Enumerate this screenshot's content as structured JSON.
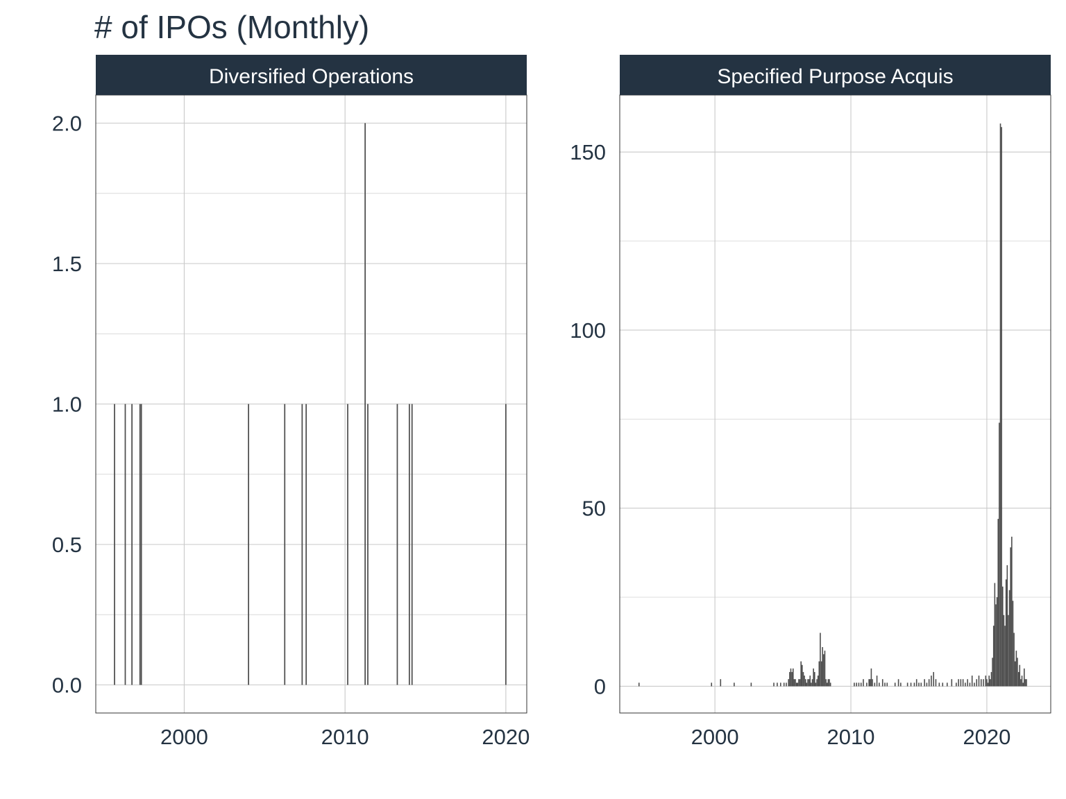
{
  "chart_data": {
    "type": "bar",
    "title": "# of IPOs (Monthly)",
    "xlabel": "",
    "ylabel": "",
    "bar_color": "#4d4d4d",
    "strip_color": "#243342",
    "text_color": "#243342",
    "grid": true,
    "legend": "none",
    "panels": [
      {
        "name": "Diversified Operations",
        "xlim": [
          1994.5,
          2021.3
        ],
        "ylim": [
          -0.1,
          2.1
        ],
        "x_ticks": [
          2000,
          2010,
          2020
        ],
        "x_tick_labels": [
          "2000",
          "2010",
          "2020"
        ],
        "y_ticks": [
          0,
          0.5,
          1,
          1.5,
          2
        ],
        "y_tick_labels": [
          "0.0",
          "0.5",
          "1.0",
          "1.5",
          "2.0"
        ],
        "y_minor": [
          0.25,
          0.75,
          1.25,
          1.75
        ],
        "data": [
          [
            "1995-09",
            1
          ],
          [
            "1996-05",
            1
          ],
          [
            "1996-10",
            1
          ],
          [
            "1997-04",
            1
          ],
          [
            "1997-05",
            1
          ],
          [
            "2004-01",
            1
          ],
          [
            "2006-04",
            1
          ],
          [
            "2007-05",
            1
          ],
          [
            "2007-08",
            1
          ],
          [
            "2010-03",
            1
          ],
          [
            "2011-04",
            2
          ],
          [
            "2011-06",
            1
          ],
          [
            "2013-04",
            1
          ],
          [
            "2014-01",
            1
          ],
          [
            "2014-03",
            1
          ],
          [
            "2020-01",
            1
          ]
        ]
      },
      {
        "name": "Specified Purpose Acquis",
        "xlim": [
          1993.0,
          2024.7
        ],
        "ylim": [
          -7.5,
          166
        ],
        "x_ticks": [
          2000,
          2010,
          2020
        ],
        "x_tick_labels": [
          "2000",
          "2010",
          "2020"
        ],
        "y_ticks": [
          0,
          50,
          100,
          150
        ],
        "y_tick_labels": [
          "0",
          "50",
          "100",
          "150"
        ],
        "y_minor": [
          25,
          75,
          125
        ],
        "data": [
          [
            "1994-06",
            1
          ],
          [
            "1999-10",
            1
          ],
          [
            "2000-06",
            2
          ],
          [
            "2001-06",
            1
          ],
          [
            "2002-09",
            1
          ],
          [
            "2004-05",
            1
          ],
          [
            "2004-08",
            1
          ],
          [
            "2004-11",
            1
          ],
          [
            "2005-02",
            1
          ],
          [
            "2005-04",
            1
          ],
          [
            "2005-06",
            2
          ],
          [
            "2005-07",
            4
          ],
          [
            "2005-08",
            5
          ],
          [
            "2005-09",
            4
          ],
          [
            "2005-10",
            5
          ],
          [
            "2005-11",
            2
          ],
          [
            "2005-12",
            2
          ],
          [
            "2006-01",
            1
          ],
          [
            "2006-02",
            1
          ],
          [
            "2006-03",
            2
          ],
          [
            "2006-04",
            2
          ],
          [
            "2006-05",
            7
          ],
          [
            "2006-06",
            6
          ],
          [
            "2006-07",
            4
          ],
          [
            "2006-08",
            3
          ],
          [
            "2006-09",
            2
          ],
          [
            "2006-10",
            1
          ],
          [
            "2006-11",
            2
          ],
          [
            "2006-12",
            2
          ],
          [
            "2007-01",
            3
          ],
          [
            "2007-02",
            1
          ],
          [
            "2007-03",
            2
          ],
          [
            "2007-04",
            5
          ],
          [
            "2007-05",
            4
          ],
          [
            "2007-06",
            1
          ],
          [
            "2007-07",
            2
          ],
          [
            "2007-08",
            3
          ],
          [
            "2007-09",
            7
          ],
          [
            "2007-10",
            15
          ],
          [
            "2007-11",
            7
          ],
          [
            "2007-12",
            11
          ],
          [
            "2008-01",
            9
          ],
          [
            "2008-02",
            10
          ],
          [
            "2008-03",
            2
          ],
          [
            "2008-04",
            1
          ],
          [
            "2008-05",
            2
          ],
          [
            "2008-06",
            2
          ],
          [
            "2008-07",
            1
          ],
          [
            "2010-04",
            1
          ],
          [
            "2010-06",
            1
          ],
          [
            "2010-08",
            1
          ],
          [
            "2010-10",
            1
          ],
          [
            "2010-12",
            2
          ],
          [
            "2011-03",
            1
          ],
          [
            "2011-05",
            2
          ],
          [
            "2011-06",
            2
          ],
          [
            "2011-07",
            5
          ],
          [
            "2011-08",
            2
          ],
          [
            "2011-10",
            1
          ],
          [
            "2011-12",
            3
          ],
          [
            "2012-02",
            1
          ],
          [
            "2012-05",
            2
          ],
          [
            "2012-07",
            1
          ],
          [
            "2012-09",
            1
          ],
          [
            "2013-04",
            1
          ],
          [
            "2013-07",
            2
          ],
          [
            "2013-09",
            1
          ],
          [
            "2014-03",
            1
          ],
          [
            "2014-06",
            1
          ],
          [
            "2014-09",
            1
          ],
          [
            "2014-11",
            2
          ],
          [
            "2015-01",
            1
          ],
          [
            "2015-03",
            1
          ],
          [
            "2015-06",
            2
          ],
          [
            "2015-08",
            1
          ],
          [
            "2015-10",
            2
          ],
          [
            "2015-12",
            3
          ],
          [
            "2016-02",
            4
          ],
          [
            "2016-04",
            2
          ],
          [
            "2016-07",
            1
          ],
          [
            "2016-10",
            1
          ],
          [
            "2017-02",
            1
          ],
          [
            "2017-06",
            2
          ],
          [
            "2017-10",
            1
          ],
          [
            "2017-12",
            2
          ],
          [
            "2018-02",
            2
          ],
          [
            "2018-04",
            2
          ],
          [
            "2018-06",
            1
          ],
          [
            "2018-08",
            2
          ],
          [
            "2018-10",
            1
          ],
          [
            "2018-12",
            3
          ],
          [
            "2019-02",
            1
          ],
          [
            "2019-04",
            2
          ],
          [
            "2019-06",
            3
          ],
          [
            "2019-08",
            2
          ],
          [
            "2019-10",
            2
          ],
          [
            "2019-12",
            3
          ],
          [
            "2020-01",
            2
          ],
          [
            "2020-02",
            1
          ],
          [
            "2020-03",
            3
          ],
          [
            "2020-04",
            2
          ],
          [
            "2020-05",
            4
          ],
          [
            "2020-06",
            8
          ],
          [
            "2020-07",
            17
          ],
          [
            "2020-08",
            29
          ],
          [
            "2020-09",
            23
          ],
          [
            "2020-10",
            25
          ],
          [
            "2020-11",
            47
          ],
          [
            "2020-12",
            74
          ],
          [
            "2021-01",
            158
          ],
          [
            "2021-02",
            157
          ],
          [
            "2021-03",
            28
          ],
          [
            "2021-04",
            20
          ],
          [
            "2021-05",
            17
          ],
          [
            "2021-06",
            30
          ],
          [
            "2021-07",
            34
          ],
          [
            "2021-08",
            20
          ],
          [
            "2021-09",
            27
          ],
          [
            "2021-10",
            39
          ],
          [
            "2021-11",
            42
          ],
          [
            "2021-12",
            24
          ],
          [
            "2022-01",
            15
          ],
          [
            "2022-02",
            7
          ],
          [
            "2022-03",
            10
          ],
          [
            "2022-04",
            8
          ],
          [
            "2022-05",
            4
          ],
          [
            "2022-06",
            6
          ],
          [
            "2022-07",
            2
          ],
          [
            "2022-08",
            3
          ],
          [
            "2022-09",
            1
          ],
          [
            "2022-10",
            5
          ],
          [
            "2022-11",
            2
          ],
          [
            "2022-12",
            2
          ]
        ]
      }
    ]
  }
}
